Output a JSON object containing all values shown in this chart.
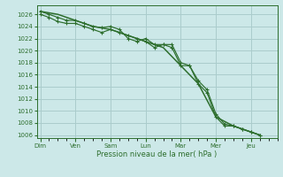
{
  "title": "Pression niveau de la mer( hPa )",
  "bg_color": "#cce8e8",
  "grid_color": "#aacccc",
  "line_color": "#2d6e2d",
  "ylim": [
    1005.5,
    1027.5
  ],
  "yticks": [
    1006,
    1008,
    1010,
    1012,
    1014,
    1016,
    1018,
    1020,
    1022,
    1024,
    1026
  ],
  "x_labels": [
    "Dim",
    "Ven",
    "Sam",
    "Lun",
    "Mar",
    "Mer",
    "Jeu"
  ],
  "x_positions": [
    0,
    2,
    4,
    6,
    8,
    10,
    12
  ],
  "xlim": [
    -0.2,
    13.5
  ],
  "line1_x": [
    0,
    0.5,
    1.0,
    1.5,
    2.0,
    2.5,
    3.0,
    3.5,
    4.0,
    4.5,
    5.0,
    5.5,
    6.0,
    6.5,
    7.0,
    7.5,
    8.0,
    8.5,
    9.0,
    9.5,
    10.0,
    10.5,
    11.0,
    11.5,
    12.0,
    12.5
  ],
  "line1_y": [
    1026.5,
    1026.0,
    1025.5,
    1025.0,
    1025.0,
    1024.5,
    1024.0,
    1023.8,
    1024.0,
    1023.5,
    1022.0,
    1021.5,
    1022.0,
    1021.0,
    1021.0,
    1021.0,
    1018.0,
    1017.5,
    1015.0,
    1013.5,
    1009.5,
    1007.8,
    1007.5,
    1007.0,
    1006.5,
    1006.0
  ],
  "line2_x": [
    0,
    0.5,
    1.0,
    1.5,
    2.0,
    2.5,
    3.0,
    3.5,
    4.0,
    4.5,
    5.0,
    5.5,
    6.0,
    6.5,
    7.0,
    7.5,
    8.0,
    8.5,
    9.0,
    9.5,
    10.0,
    10.5,
    11.0,
    11.5,
    12.0,
    12.5
  ],
  "line2_y": [
    1026.0,
    1025.5,
    1024.8,
    1024.5,
    1024.5,
    1024.0,
    1023.5,
    1023.0,
    1023.5,
    1023.0,
    1022.5,
    1022.0,
    1021.5,
    1020.5,
    1021.0,
    1020.5,
    1017.5,
    1017.5,
    1014.5,
    1013.0,
    1009.0,
    1007.5,
    1007.5,
    1007.0,
    1006.5,
    1006.0
  ],
  "line3_x": [
    0,
    1,
    2,
    3,
    4,
    5,
    6,
    7,
    8,
    9,
    10,
    11,
    12,
    12.5
  ],
  "line3_y": [
    1026.5,
    1026.0,
    1025.0,
    1024.0,
    1023.5,
    1022.5,
    1021.5,
    1020.5,
    1017.5,
    1014.5,
    1009.0,
    1007.5,
    1006.5,
    1006.0
  ]
}
